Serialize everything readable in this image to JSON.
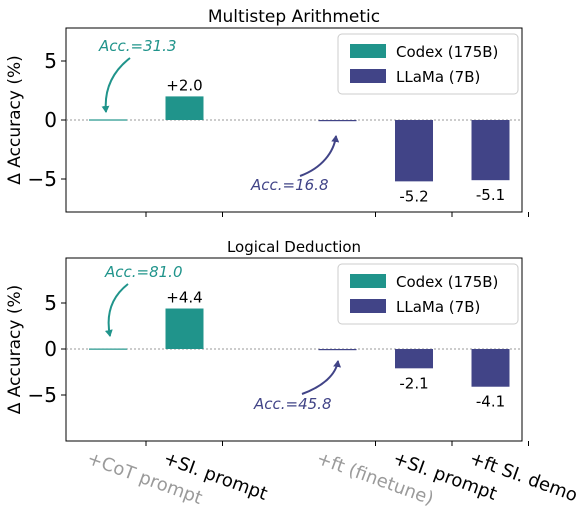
{
  "chart_data": [
    {
      "type": "bar",
      "title": "Multistep Arithmetic",
      "ylabel": "Δ Accuracy (%)",
      "ylim": [
        -8,
        8
      ],
      "yticks": [
        5,
        0,
        -5
      ],
      "legend_position": "top-right",
      "series": [
        {
          "name": "Codex (175B)",
          "color": "#20948b",
          "points": [
            {
              "slot": 0,
              "value": 0.05,
              "label": ""
            },
            {
              "slot": 1,
              "value": 2.0,
              "label": "+2.0"
            }
          ]
        },
        {
          "name": "LLaMa (7B)",
          "color": "#414487",
          "points": [
            {
              "slot": 3,
              "value": -0.05,
              "label": ""
            },
            {
              "slot": 4,
              "value": -5.2,
              "label": "-5.2"
            },
            {
              "slot": 5,
              "value": -5.1,
              "label": "-5.1"
            }
          ]
        }
      ],
      "annotations": [
        {
          "text": "Acc.=31.3",
          "series": 0,
          "slot": 0
        },
        {
          "text": "Acc.=16.8",
          "series": 1,
          "slot": 3
        }
      ]
    },
    {
      "type": "bar",
      "title": "Logical Deduction",
      "ylabel": "Δ Accuracy (%)",
      "ylim": [
        -8,
        8
      ],
      "yticks": [
        5,
        0,
        -5
      ],
      "legend_position": "top-right",
      "series": [
        {
          "name": "Codex (175B)",
          "color": "#20948b",
          "points": [
            {
              "slot": 0,
              "value": 0.05,
              "label": ""
            },
            {
              "slot": 1,
              "value": 4.4,
              "label": "+4.4"
            }
          ]
        },
        {
          "name": "LLaMa (7B)",
          "color": "#414487",
          "points": [
            {
              "slot": 3,
              "value": -0.05,
              "label": ""
            },
            {
              "slot": 4,
              "value": -2.1,
              "label": "-2.1"
            },
            {
              "slot": 5,
              "value": -4.1,
              "label": "-4.1"
            }
          ]
        }
      ],
      "annotations": [
        {
          "text": "Acc.=81.0",
          "series": 0,
          "slot": 0
        },
        {
          "text": "Acc.=45.8",
          "series": 1,
          "slot": 3
        }
      ]
    }
  ],
  "x_tick_labels": [
    {
      "slot": 0,
      "text": "+CoT prompt",
      "color": "#9a9a9a"
    },
    {
      "slot": 1,
      "text": "+SI. prompt",
      "color": "#000000"
    },
    {
      "slot": 3,
      "text": "+ft (finetune)",
      "color": "#9a9a9a"
    },
    {
      "slot": 4,
      "text": "+SI. prompt",
      "color": "#000000"
    },
    {
      "slot": 5,
      "text": "+ft SI. demo",
      "color": "#000000"
    }
  ]
}
